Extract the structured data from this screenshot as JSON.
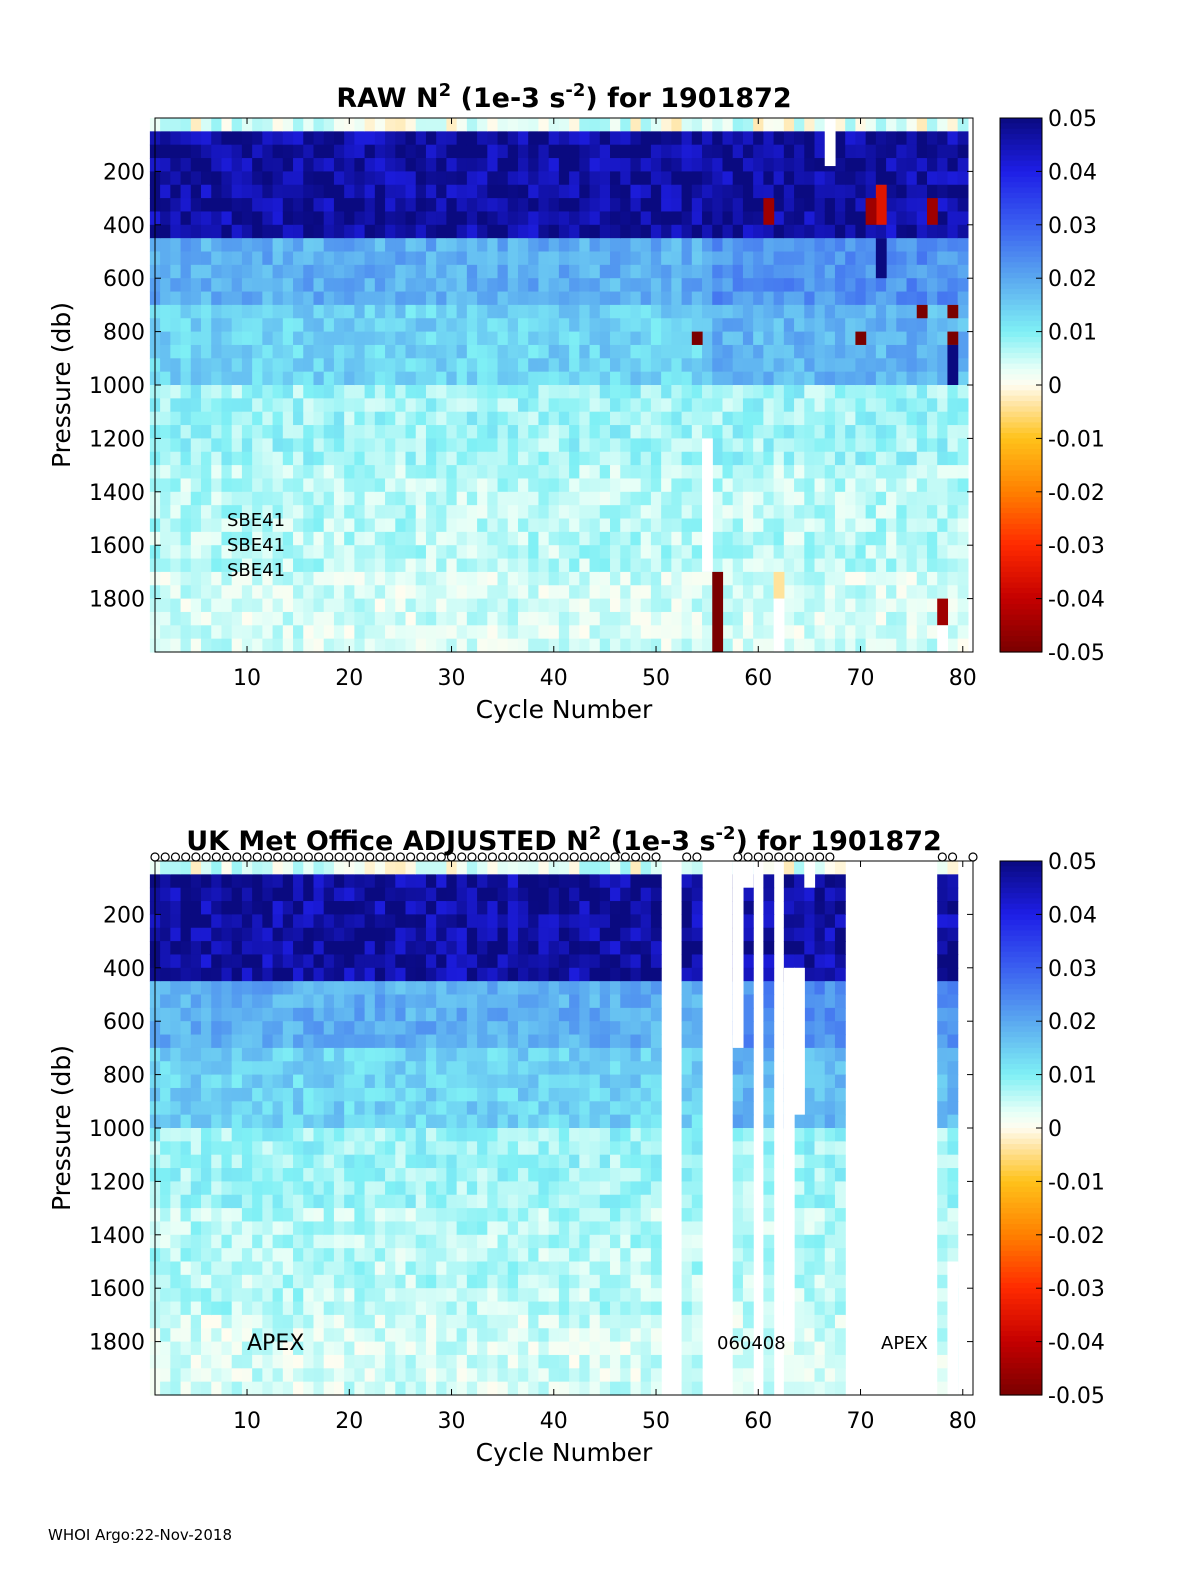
{
  "footer": "WHOI Argo:22-Nov-2018",
  "colormap": {
    "stops": [
      {
        "v": -0.05,
        "c": "#7a0000"
      },
      {
        "v": -0.04,
        "c": "#c40000"
      },
      {
        "v": -0.03,
        "c": "#ff2a00"
      },
      {
        "v": -0.02,
        "c": "#ff8000"
      },
      {
        "v": -0.01,
        "c": "#ffc21a"
      },
      {
        "v": -0.003,
        "c": "#ffe8b0"
      },
      {
        "v": 0.0,
        "c": "#fffdf0"
      },
      {
        "v": 0.003,
        "c": "#e6fff7"
      },
      {
        "v": 0.01,
        "c": "#7ff0f5"
      },
      {
        "v": 0.02,
        "c": "#5aa8f0"
      },
      {
        "v": 0.03,
        "c": "#3a5ff0"
      },
      {
        "v": 0.04,
        "c": "#1e1ee6"
      },
      {
        "v": 0.05,
        "c": "#0a0a80"
      }
    ],
    "tick_labels": [
      "0.05",
      "0.04",
      "0.03",
      "0.02",
      "0.01",
      "0",
      "-0.01",
      "-0.02",
      "-0.03",
      "-0.04",
      "-0.05"
    ]
  },
  "chart_data": [
    {
      "type": "heatmap",
      "title_prefix": "RAW N",
      "title_sup1": "2",
      "title_mid": " (1e-3 s",
      "title_sup2": "-2",
      "title_suffix": ") for 1901872",
      "xlabel": "Cycle Number",
      "ylabel": "Pressure (db)",
      "xlim": [
        1,
        81
      ],
      "ylim": [
        2000,
        0
      ],
      "xticks": [
        10,
        20,
        30,
        40,
        50,
        60,
        70,
        80
      ],
      "yticks": [
        200,
        400,
        600,
        800,
        1000,
        1200,
        1400,
        1600,
        1800
      ],
      "clim": [
        -0.05,
        0.05
      ],
      "annotations": [
        "SBE41",
        "SBE41",
        "SBE41"
      ],
      "profile_rows": [
        {
          "p": [
            0,
            50
          ],
          "v": 0.003
        },
        {
          "p": [
            50,
            450
          ],
          "v": 0.047
        },
        {
          "p": [
            450,
            700
          ],
          "v": 0.019
        },
        {
          "p": [
            700,
            1000
          ],
          "v": 0.014
        },
        {
          "p": [
            1000,
            1300
          ],
          "v": 0.008
        },
        {
          "p": [
            1300,
            1700
          ],
          "v": 0.006
        },
        {
          "p": [
            1700,
            2000
          ],
          "v": 0.004
        }
      ],
      "missing_cycles": [],
      "special_cells": [
        {
          "c": 55,
          "p": [
            1200,
            1700
          ],
          "v": null
        },
        {
          "c": 56,
          "p": [
            1700,
            2000
          ],
          "v": -0.05
        },
        {
          "c": 62,
          "p": [
            1700,
            1800
          ],
          "v": -0.004
        },
        {
          "c": 62,
          "p": [
            1800,
            2000
          ],
          "v": null
        },
        {
          "c": 78,
          "p": [
            1800,
            1900
          ],
          "v": -0.045
        },
        {
          "c": 78,
          "p": [
            1900,
            2000
          ],
          "v": null
        },
        {
          "c": 72,
          "p": [
            250,
            400
          ],
          "v": -0.035
        },
        {
          "c": 61,
          "p": [
            300,
            400
          ],
          "v": -0.045
        },
        {
          "c": 71,
          "p": [
            300,
            400
          ],
          "v": -0.045
        },
        {
          "c": 77,
          "p": [
            300,
            400
          ],
          "v": -0.045
        },
        {
          "c": 67,
          "p": [
            0,
            180
          ],
          "v": null
        },
        {
          "c": 54,
          "p": [
            800,
            850
          ],
          "v": -0.05
        },
        {
          "c": 70,
          "p": [
            800,
            850
          ],
          "v": -0.05
        },
        {
          "c": 76,
          "p": [
            700,
            750
          ],
          "v": -0.05
        },
        {
          "c": 79,
          "p": [
            700,
            750
          ],
          "v": -0.05
        },
        {
          "c": 79,
          "p": [
            800,
            850
          ],
          "v": -0.05
        },
        {
          "c": 79,
          "p": [
            850,
            1000
          ],
          "v": 0.05
        },
        {
          "c": 72,
          "p": [
            450,
            600
          ],
          "v": 0.05
        }
      ]
    },
    {
      "type": "heatmap",
      "title_prefix": "UK Met Office  ADJUSTED N",
      "title_sup1": "2",
      "title_mid": " (1e-3 s",
      "title_sup2": "-2",
      "title_suffix": ") for 1901872",
      "xlabel": "Cycle Number",
      "ylabel": "Pressure (db)",
      "xlim": [
        1,
        81
      ],
      "ylim": [
        2000,
        0
      ],
      "xticks": [
        10,
        20,
        30,
        40,
        50,
        60,
        70,
        80
      ],
      "yticks": [
        200,
        400,
        600,
        800,
        1000,
        1200,
        1400,
        1600,
        1800
      ],
      "clim": [
        -0.05,
        0.05
      ],
      "annotations": [
        "APEX",
        "060408",
        "APEX"
      ],
      "profile_rows": [
        {
          "p": [
            0,
            50
          ],
          "v": 0.003
        },
        {
          "p": [
            50,
            450
          ],
          "v": 0.047
        },
        {
          "p": [
            450,
            700
          ],
          "v": 0.019
        },
        {
          "p": [
            700,
            1000
          ],
          "v": 0.014
        },
        {
          "p": [
            1000,
            1300
          ],
          "v": 0.008
        },
        {
          "p": [
            1300,
            1700
          ],
          "v": 0.006
        },
        {
          "p": [
            1700,
            2000
          ],
          "v": 0.004
        }
      ],
      "missing_cycles": [
        51,
        52,
        55,
        56,
        57,
        60,
        62,
        69,
        70,
        71,
        72,
        73,
        74,
        75,
        76,
        77,
        80
      ],
      "special_cells": [
        {
          "c": 58,
          "p": [
            0,
            700
          ],
          "v": null
        },
        {
          "c": 59,
          "p": [
            0,
            100
          ],
          "v": null
        },
        {
          "c": 63,
          "p": [
            400,
            1800
          ],
          "v": null
        },
        {
          "c": 64,
          "p": [
            400,
            950
          ],
          "v": null
        },
        {
          "c": 65,
          "p": [
            0,
            100
          ],
          "v": null
        },
        {
          "c": 79,
          "p": [
            1500,
            2000
          ],
          "v": null
        },
        {
          "c": 62,
          "p": [
            1800,
            1850
          ],
          "v": -0.004
        }
      ],
      "marker_cycles": [
        1,
        2,
        3,
        4,
        5,
        6,
        7,
        8,
        9,
        10,
        11,
        12,
        13,
        14,
        15,
        16,
        17,
        18,
        19,
        20,
        21,
        22,
        23,
        24,
        25,
        26,
        27,
        28,
        29,
        30,
        31,
        32,
        33,
        34,
        35,
        36,
        37,
        38,
        39,
        40,
        41,
        42,
        43,
        44,
        45,
        46,
        47,
        48,
        49,
        50,
        53,
        54,
        58,
        59,
        60,
        61,
        62,
        63,
        64,
        65,
        66,
        67,
        78,
        79,
        81
      ]
    }
  ]
}
